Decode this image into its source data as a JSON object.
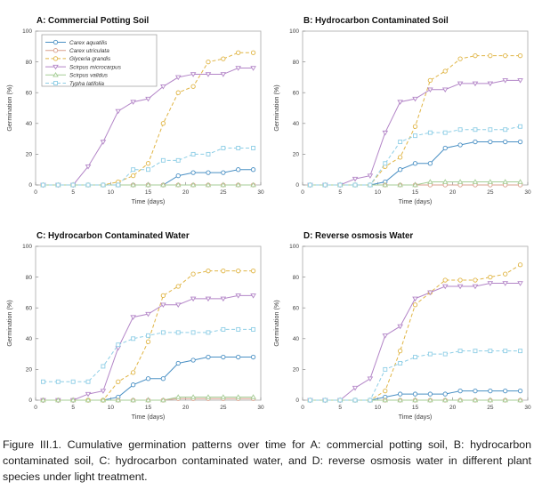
{
  "figure": {
    "caption": "Figure III.1. Cumulative germination patterns over time for A: commercial potting soil, B: hydrocarbon contaminated soil, C: hydrocarbon contaminated water, and D: reverse osmosis water in different plant species under light treatment."
  },
  "palette": {
    "axis_border": "#b3b3b3",
    "tick": "#8a8a8a",
    "tick_label": "#3d3d3d",
    "title_color": "#111111",
    "legend_border": "#999999"
  },
  "species": [
    {
      "name": "Carex aquatilis",
      "color": "#4a90c4",
      "marker": "circle",
      "dash": false
    },
    {
      "name": "Carex utriculata",
      "color": "#d9a08c",
      "marker": "circle",
      "dash": false
    },
    {
      "name": "Glyceria grandis",
      "color": "#e0b545",
      "marker": "circle",
      "dash": true
    },
    {
      "name": "Scirpus microcarpus",
      "color": "#b385c7",
      "marker": "triangle-down",
      "dash": false
    },
    {
      "name": "Scirpus validus",
      "color": "#a6ce96",
      "marker": "triangle-up",
      "dash": false
    },
    {
      "name": "Typha latifolia",
      "color": "#8ecee6",
      "marker": "square",
      "dash": true
    }
  ],
  "chart_data": [
    {
      "type": "line",
      "panel": "A",
      "title": "A: Commercial Potting Soil",
      "xlabel": "Time (days)",
      "ylabel": "Germination (%)",
      "xlim": [
        0,
        30
      ],
      "ylim": [
        0,
        100
      ],
      "xticks": [
        0,
        5,
        10,
        15,
        20,
        25,
        30
      ],
      "yticks": [
        0,
        20,
        40,
        60,
        80,
        100
      ],
      "grid": false,
      "legend_visible": true,
      "legend_position": "top-left",
      "x": [
        1,
        3,
        5,
        7,
        9,
        11,
        13,
        15,
        17,
        19,
        21,
        23,
        25,
        27,
        29
      ],
      "series": [
        {
          "name": "Carex aquatilis",
          "values": [
            0,
            0,
            0,
            0,
            0,
            0,
            0,
            0,
            0,
            6,
            8,
            8,
            8,
            10,
            10
          ]
        },
        {
          "name": "Carex utriculata",
          "values": [
            0,
            0,
            0,
            0,
            0,
            0,
            0,
            0,
            0,
            0,
            0,
            0,
            0,
            0,
            0
          ]
        },
        {
          "name": "Glyceria grandis",
          "values": [
            0,
            0,
            0,
            0,
            0,
            2,
            6,
            14,
            40,
            60,
            64,
            80,
            82,
            86,
            86
          ]
        },
        {
          "name": "Scirpus microcarpus",
          "values": [
            0,
            0,
            0,
            12,
            28,
            48,
            54,
            56,
            64,
            70,
            72,
            72,
            72,
            76,
            76
          ]
        },
        {
          "name": "Scirpus validus",
          "values": [
            0,
            0,
            0,
            0,
            0,
            0,
            0,
            0,
            0,
            0,
            0,
            0,
            0,
            0,
            0
          ]
        },
        {
          "name": "Typha latifolia",
          "values": [
            0,
            0,
            0,
            0,
            0,
            0,
            10,
            10,
            16,
            16,
            20,
            20,
            24,
            24,
            24
          ]
        }
      ]
    },
    {
      "type": "line",
      "panel": "B",
      "title": "B: Hydrocarbon Contaminated Soil",
      "xlabel": "Time (days)",
      "ylabel": "Germination (%)",
      "xlim": [
        0,
        30
      ],
      "ylim": [
        0,
        100
      ],
      "xticks": [
        0,
        5,
        10,
        15,
        20,
        25,
        30
      ],
      "yticks": [
        0,
        20,
        40,
        60,
        80,
        100
      ],
      "grid": false,
      "legend_visible": false,
      "x": [
        1,
        3,
        5,
        7,
        9,
        11,
        13,
        15,
        17,
        19,
        21,
        23,
        25,
        27,
        29
      ],
      "series": [
        {
          "name": "Carex aquatilis",
          "values": [
            0,
            0,
            0,
            0,
            0,
            2,
            10,
            14,
            14,
            24,
            26,
            28,
            28,
            28,
            28
          ]
        },
        {
          "name": "Carex utriculata",
          "values": [
            0,
            0,
            0,
            0,
            0,
            0,
            0,
            0,
            0,
            0,
            0,
            0,
            0,
            0,
            0
          ]
        },
        {
          "name": "Glyceria grandis",
          "values": [
            0,
            0,
            0,
            0,
            0,
            12,
            18,
            38,
            68,
            74,
            82,
            84,
            84,
            84,
            84
          ]
        },
        {
          "name": "Scirpus microcarpus",
          "values": [
            0,
            0,
            0,
            4,
            6,
            34,
            54,
            56,
            62,
            62,
            66,
            66,
            66,
            68,
            68
          ]
        },
        {
          "name": "Scirpus validus",
          "values": [
            0,
            0,
            0,
            0,
            0,
            0,
            0,
            0,
            2,
            2,
            2,
            2,
            2,
            2,
            2
          ]
        },
        {
          "name": "Typha latifolia",
          "values": [
            0,
            0,
            0,
            0,
            0,
            14,
            28,
            32,
            34,
            34,
            36,
            36,
            36,
            36,
            38
          ]
        }
      ]
    },
    {
      "type": "line",
      "panel": "C",
      "title": "C: Hydrocarbon Contaminated Water",
      "xlabel": "Time (days)",
      "ylabel": "Germination (%)",
      "xlim": [
        0,
        30
      ],
      "ylim": [
        0,
        100
      ],
      "xticks": [
        0,
        5,
        10,
        15,
        20,
        25,
        30
      ],
      "yticks": [
        0,
        20,
        40,
        60,
        80,
        100
      ],
      "grid": false,
      "legend_visible": false,
      "x": [
        1,
        3,
        5,
        7,
        9,
        11,
        13,
        15,
        17,
        19,
        21,
        23,
        25,
        27,
        29
      ],
      "series": [
        {
          "name": "Carex aquatilis",
          "values": [
            0,
            0,
            0,
            0,
            0,
            2,
            10,
            14,
            14,
            24,
            26,
            28,
            28,
            28,
            28
          ]
        },
        {
          "name": "Carex utriculata",
          "values": [
            0,
            0,
            0,
            0,
            0,
            0,
            0,
            0,
            0,
            1,
            1,
            1,
            1,
            1,
            1
          ]
        },
        {
          "name": "Glyceria grandis",
          "values": [
            0,
            0,
            0,
            0,
            0,
            12,
            18,
            38,
            68,
            74,
            82,
            84,
            84,
            84,
            84
          ]
        },
        {
          "name": "Scirpus microcarpus",
          "values": [
            0,
            0,
            0,
            4,
            6,
            34,
            54,
            56,
            62,
            62,
            66,
            66,
            66,
            68,
            68
          ]
        },
        {
          "name": "Scirpus validus",
          "values": [
            0,
            0,
            0,
            0,
            0,
            0,
            0,
            0,
            0,
            2,
            2,
            2,
            2,
            2,
            2
          ]
        },
        {
          "name": "Typha latifolia",
          "values": [
            12,
            12,
            12,
            12,
            22,
            36,
            40,
            42,
            44,
            44,
            44,
            44,
            46,
            46,
            46
          ]
        }
      ]
    },
    {
      "type": "line",
      "panel": "D",
      "title": "D: Reverse osmosis  Water",
      "xlabel": "Time (days)",
      "ylabel": "Germination (%)",
      "xlim": [
        0,
        30
      ],
      "ylim": [
        0,
        100
      ],
      "xticks": [
        0,
        5,
        10,
        15,
        20,
        25,
        30
      ],
      "yticks": [
        0,
        20,
        40,
        60,
        80,
        100
      ],
      "grid": false,
      "legend_visible": false,
      "x": [
        1,
        3,
        5,
        7,
        9,
        11,
        13,
        15,
        17,
        19,
        21,
        23,
        25,
        27,
        29
      ],
      "series": [
        {
          "name": "Carex aquatilis",
          "values": [
            0,
            0,
            0,
            0,
            0,
            2,
            4,
            4,
            4,
            4,
            6,
            6,
            6,
            6,
            6
          ]
        },
        {
          "name": "Carex utriculata",
          "values": [
            0,
            0,
            0,
            0,
            0,
            0,
            0,
            0,
            0,
            0,
            0,
            0,
            0,
            0,
            0
          ]
        },
        {
          "name": "Glyceria grandis",
          "values": [
            0,
            0,
            0,
            0,
            0,
            6,
            32,
            62,
            70,
            78,
            78,
            78,
            80,
            82,
            88
          ]
        },
        {
          "name": "Scirpus microcarpus",
          "values": [
            0,
            0,
            0,
            8,
            14,
            42,
            48,
            66,
            70,
            74,
            74,
            74,
            76,
            76,
            76
          ]
        },
        {
          "name": "Scirpus validus",
          "values": [
            0,
            0,
            0,
            0,
            0,
            0,
            0,
            0,
            0,
            0,
            0,
            0,
            0,
            0,
            0
          ]
        },
        {
          "name": "Typha latifolia",
          "values": [
            0,
            0,
            0,
            0,
            0,
            20,
            24,
            28,
            30,
            30,
            32,
            32,
            32,
            32,
            32
          ]
        }
      ]
    }
  ]
}
